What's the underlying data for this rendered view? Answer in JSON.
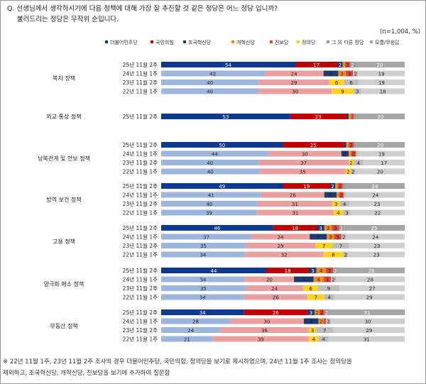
{
  "question_line1": "Q. 선생님께서 생각하시기에 다음 정책에 대해 가장 잘 추진할 것 같은 정당은 어느 정당 입니까?",
  "question_line2": "불러드리는 정당은 무작위 순입니다.",
  "sample_note": "(n=1,004, %)",
  "footnote_line1": "※ 22년 11월 1주, 23년 11월 2주 조사의 경우 더불어민주당, 국민의힘, 정의당을 보기로 제시하였으며, 24년 11월 1주 조사는 정의당을",
  "footnote_line2": "제외하고, 조국혁신당, 개혁신당, 진보당을 보기에 추가하여 질문함",
  "chart_data": {
    "type": "bar",
    "orientation": "horizontal",
    "stacked": true,
    "percent_scale": [
      0,
      100
    ],
    "legend_position": "top",
    "series": [
      {
        "name": "더불어민주당",
        "color_current": "#0b3a8f",
        "color_past": "#9eb6dc"
      },
      {
        "name": "국민의힘",
        "color_current": "#c00000",
        "color_past": "#e8a0a0"
      },
      {
        "name": "조국혁신당",
        "color_current": "#1f3a6e",
        "color_past": "#1f3a6e"
      },
      {
        "name": "개혁신당",
        "color_current": "#f08a24",
        "color_past": "#f08a24"
      },
      {
        "name": "진보당",
        "color_current": "#d94a3a",
        "color_past": "#d94a3a"
      },
      {
        "name": "정의당",
        "color_current": "#ffd21f",
        "color_past": "#ffd21f"
      },
      {
        "name": "그 외 다른 정당",
        "color_current": "#9a9a9a",
        "color_past": "#bdbdbd"
      },
      {
        "name": "모름/무응답",
        "color_current": "#a6a6a6",
        "color_past": "#cfcfcf"
      }
    ],
    "groups": [
      {
        "name": "복지 정책",
        "rows": [
          {
            "period": "25년 11월 2주",
            "values": [
              54,
              17,
              2,
              1,
              2,
              0,
              2,
              20
            ]
          },
          {
            "period": "24년 11월 1주",
            "values": [
              42,
              24,
              6,
              3,
              3,
              0,
              2,
              19
            ]
          },
          {
            "period": "23년 11월 2주",
            "values": [
              40,
              29,
              0,
              0,
              0,
              6,
              6,
              19
            ]
          },
          {
            "period": "22년 11월 1주",
            "values": [
              40,
              30,
              0,
              0,
              0,
              9,
              3,
              18
            ]
          }
        ]
      },
      {
        "name": "외교·통상 정책",
        "rows": [
          {
            "period": "25년 11월 2주",
            "values": [
              53,
              23,
              1,
              1,
              1,
              0,
              1,
              20
            ]
          }
        ]
      },
      {
        "name": "남북관계 및 안보 정책",
        "rows": [
          {
            "period": "25년 11월 2주",
            "values": [
              50,
              25,
              1,
              1,
              2,
              0,
              1,
              20
            ]
          },
          {
            "period": "24년 11월 1주",
            "values": [
              44,
              30,
              3,
              1,
              2,
              0,
              1,
              19
            ]
          },
          {
            "period": "23년 11월 2주",
            "values": [
              40,
              37,
              0,
              0,
              0,
              2,
              4,
              17
            ]
          },
          {
            "period": "22년 11월 1주",
            "values": [
              40,
              35,
              0,
              0,
              0,
              2,
              2,
              20
            ]
          }
        ]
      },
      {
        "name": "방역 보건 정책",
        "rows": [
          {
            "period": "25년 11월 2주",
            "values": [
              49,
              19,
              2,
              1,
              2,
              0,
              1,
              24
            ]
          },
          {
            "period": "24년 11월 1주",
            "values": [
              41,
              26,
              5,
              1,
              2,
              0,
              1,
              24
            ]
          },
          {
            "period": "23년 11월 2주",
            "values": [
              40,
              31,
              0,
              0,
              0,
              3,
              4,
              23
            ]
          },
          {
            "period": "22년 11월 1주",
            "values": [
              39,
              31,
              0,
              0,
              0,
              4,
              3,
              22
            ]
          }
        ]
      },
      {
        "name": "고용 정책",
        "rows": [
          {
            "period": "25년 11월 2주",
            "values": [
              46,
              18,
              3,
              3,
              3,
              0,
              2,
              25
            ]
          },
          {
            "period": "24년 11월 1주",
            "values": [
              37,
              24,
              7,
              3,
              3,
              0,
              2,
              24
            ]
          },
          {
            "period": "23년 11월 2주",
            "values": [
              35,
              29,
              0,
              0,
              0,
              7,
              7,
              23
            ]
          },
          {
            "period": "22년 11월 1주",
            "values": [
              34,
              32,
              0,
              0,
              0,
              8,
              2,
              23
            ]
          }
        ]
      },
      {
        "name": "양극화 해소 정책",
        "rows": [
          {
            "period": "25년 11월 2주",
            "values": [
              44,
              18,
              3,
              4,
              3,
              0,
              2,
              28
            ]
          },
          {
            "period": "24년 11월 1주",
            "values": [
              34,
              20,
              8,
              4,
              3,
              0,
              2,
              28
            ]
          },
          {
            "period": "23년 11월 2주",
            "values": [
              35,
              24,
              0,
              0,
              0,
              6,
              9,
              27
            ]
          },
          {
            "period": "22년 11월 1주",
            "values": [
              34,
              26,
              0,
              0,
              0,
              7,
              4,
              29
            ]
          }
        ]
      },
      {
        "name": "부동산 정책",
        "rows": [
          {
            "period": "25년 11월 2주",
            "values": [
              34,
              26,
              3,
              2,
              2,
              0,
              2,
              31
            ]
          },
          {
            "period": "24년 11월 1주",
            "values": [
              28,
              30,
              6,
              2,
              1,
              0,
              2,
              30
            ]
          },
          {
            "period": "23년 11월 2주",
            "values": [
              24,
              36,
              0,
              0,
              0,
              3,
              7,
              29
            ]
          },
          {
            "period": "22년 11월 1주",
            "values": [
              21,
              39,
              0,
              0,
              0,
              4,
              4,
              31
            ]
          }
        ]
      }
    ]
  }
}
